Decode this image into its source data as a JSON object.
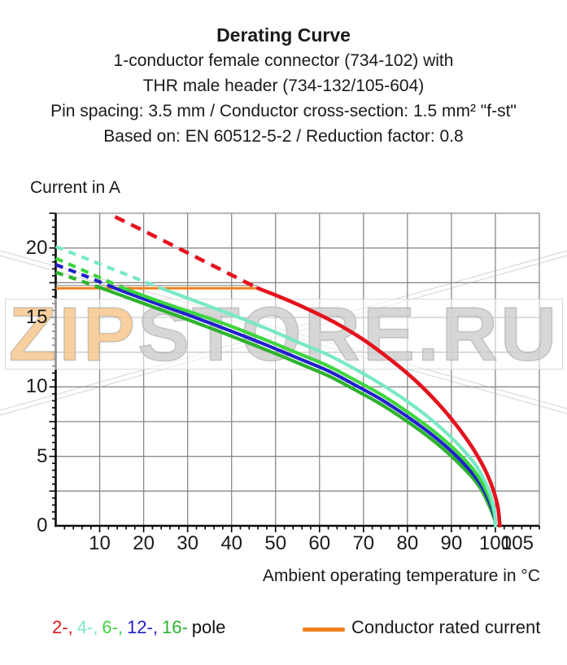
{
  "header": {
    "title": "Derating Curve",
    "subtitle_lines": [
      "1-conductor female connector (734-102) with",
      "THR male header (734-132/105-604)",
      "Pin spacing: 3.5 mm / Conductor cross-section: 1.5 mm² \"f-st\"",
      "Based on: EN 60512-5-2 / Reduction factor: 0.8"
    ]
  },
  "axes": {
    "y_title": "Current in A",
    "x_title": "Ambient operating temperature in °C"
  },
  "legend": {
    "pole_items": [
      {
        "label": "2-,",
        "color": "#e5131d"
      },
      {
        "label": "4-,",
        "color": "#79e8c6"
      },
      {
        "label": "6-,",
        "color": "#3ed63e"
      },
      {
        "label": "12-,",
        "color": "#2121cb"
      },
      {
        "label": "16-",
        "color": "#2db32d"
      }
    ],
    "pole_suffix": "pole",
    "rated_label": "Conductor rated current",
    "rated_color": "#f07f1d"
  },
  "watermark": {
    "part1": "ZIP",
    "part2": "STORE.RU"
  },
  "chart_data": {
    "type": "line",
    "title": "Derating Curve",
    "xlabel": "Ambient operating temperature in °C",
    "ylabel": "Current in A",
    "xlim": [
      0,
      110
    ],
    "ylim": [
      0,
      22.5
    ],
    "x_tick_labels": [
      10,
      20,
      30,
      40,
      50,
      60,
      70,
      80,
      90,
      100,
      105
    ],
    "y_tick_labels": [
      0,
      5,
      10,
      15,
      20
    ],
    "x_grid_step": 10,
    "x_grid_max": 100,
    "y_grid_step": 2.5,
    "x_minor_step": 2,
    "y_minor_step": 0.5,
    "grid_on": true,
    "legend_position": "bottom",
    "rated_current_line": {
      "label": "Conductor rated current",
      "y": 17.1,
      "x_start": 0,
      "x_end": 46,
      "color": "#f07f1d"
    },
    "series": [
      {
        "name": "16-pole",
        "color": "#2db32d",
        "dash_until": 10.5,
        "width": 4.2,
        "points": [
          [
            0,
            18.25
          ],
          [
            6,
            17.6
          ],
          [
            10.5,
            17.1
          ],
          [
            20,
            16.0
          ],
          [
            30,
            14.85
          ],
          [
            40,
            13.65
          ],
          [
            48,
            12.65
          ],
          [
            56,
            11.6
          ],
          [
            62,
            10.8
          ],
          [
            68,
            9.8
          ],
          [
            74,
            8.75
          ],
          [
            80,
            7.5
          ],
          [
            85,
            6.35
          ],
          [
            89,
            5.3
          ],
          [
            92,
            4.4
          ],
          [
            95,
            3.4
          ],
          [
            97,
            2.5
          ],
          [
            98.8,
            1.3
          ],
          [
            99.8,
            0.45
          ],
          [
            100,
            0
          ]
        ]
      },
      {
        "name": "12-pole",
        "color": "#2121cb",
        "dash_until": 13.5,
        "width": 4.2,
        "points": [
          [
            0,
            18.8
          ],
          [
            7,
            17.95
          ],
          [
            13.5,
            17.1
          ],
          [
            22,
            16.1
          ],
          [
            30,
            15.2
          ],
          [
            40,
            14.0
          ],
          [
            48,
            13.0
          ],
          [
            56,
            11.95
          ],
          [
            62,
            11.15
          ],
          [
            68,
            10.15
          ],
          [
            74,
            9.1
          ],
          [
            80,
            7.85
          ],
          [
            85,
            6.7
          ],
          [
            89,
            5.65
          ],
          [
            92,
            4.75
          ],
          [
            95,
            3.7
          ],
          [
            97,
            2.8
          ],
          [
            98.8,
            1.6
          ],
          [
            99.8,
            0.6
          ],
          [
            100,
            0
          ]
        ]
      },
      {
        "name": "6-pole",
        "color": "#3ed63e",
        "dash_until": 15.5,
        "width": 4.2,
        "points": [
          [
            0,
            19.25
          ],
          [
            8,
            18.15
          ],
          [
            15.5,
            17.1
          ],
          [
            24,
            16.1
          ],
          [
            32,
            15.25
          ],
          [
            40,
            14.35
          ],
          [
            48,
            13.35
          ],
          [
            56,
            12.3
          ],
          [
            62,
            11.5
          ],
          [
            68,
            10.5
          ],
          [
            74,
            9.45
          ],
          [
            80,
            8.2
          ],
          [
            85,
            7.05
          ],
          [
            89,
            6.0
          ],
          [
            92,
            5.1
          ],
          [
            95,
            4.05
          ],
          [
            97,
            3.1
          ],
          [
            98.8,
            1.9
          ],
          [
            99.8,
            0.8
          ],
          [
            100,
            0
          ]
        ]
      },
      {
        "name": "4-pole",
        "color": "#79e8c6",
        "dash_until": 24,
        "width": 4.2,
        "points": [
          [
            0,
            20.1
          ],
          [
            8,
            19.1
          ],
          [
            16,
            18.1
          ],
          [
            24,
            17.1
          ],
          [
            32,
            16.15
          ],
          [
            40,
            15.2
          ],
          [
            48,
            14.2
          ],
          [
            56,
            13.1
          ],
          [
            62,
            12.3
          ],
          [
            68,
            11.3
          ],
          [
            74,
            10.2
          ],
          [
            80,
            8.95
          ],
          [
            85,
            7.75
          ],
          [
            89,
            6.65
          ],
          [
            92,
            5.7
          ],
          [
            95,
            4.6
          ],
          [
            97,
            3.6
          ],
          [
            98.8,
            2.3
          ],
          [
            99.8,
            1.0
          ],
          [
            100,
            0
          ]
        ]
      },
      {
        "name": "2-pole",
        "color": "#e5131d",
        "dash_until": 46,
        "width": 4.6,
        "points": [
          [
            13.5,
            22.25
          ],
          [
            25,
            20.45
          ],
          [
            35,
            18.85
          ],
          [
            46,
            17.1
          ],
          [
            52,
            16.35
          ],
          [
            58,
            15.5
          ],
          [
            64,
            14.55
          ],
          [
            70,
            13.4
          ],
          [
            76,
            12.0
          ],
          [
            82,
            10.4
          ],
          [
            87,
            8.8
          ],
          [
            91,
            7.3
          ],
          [
            94,
            6.0
          ],
          [
            96,
            5.0
          ],
          [
            98,
            3.8
          ],
          [
            99.5,
            2.6
          ],
          [
            100.6,
            1.3
          ],
          [
            101,
            0
          ]
        ]
      }
    ]
  }
}
